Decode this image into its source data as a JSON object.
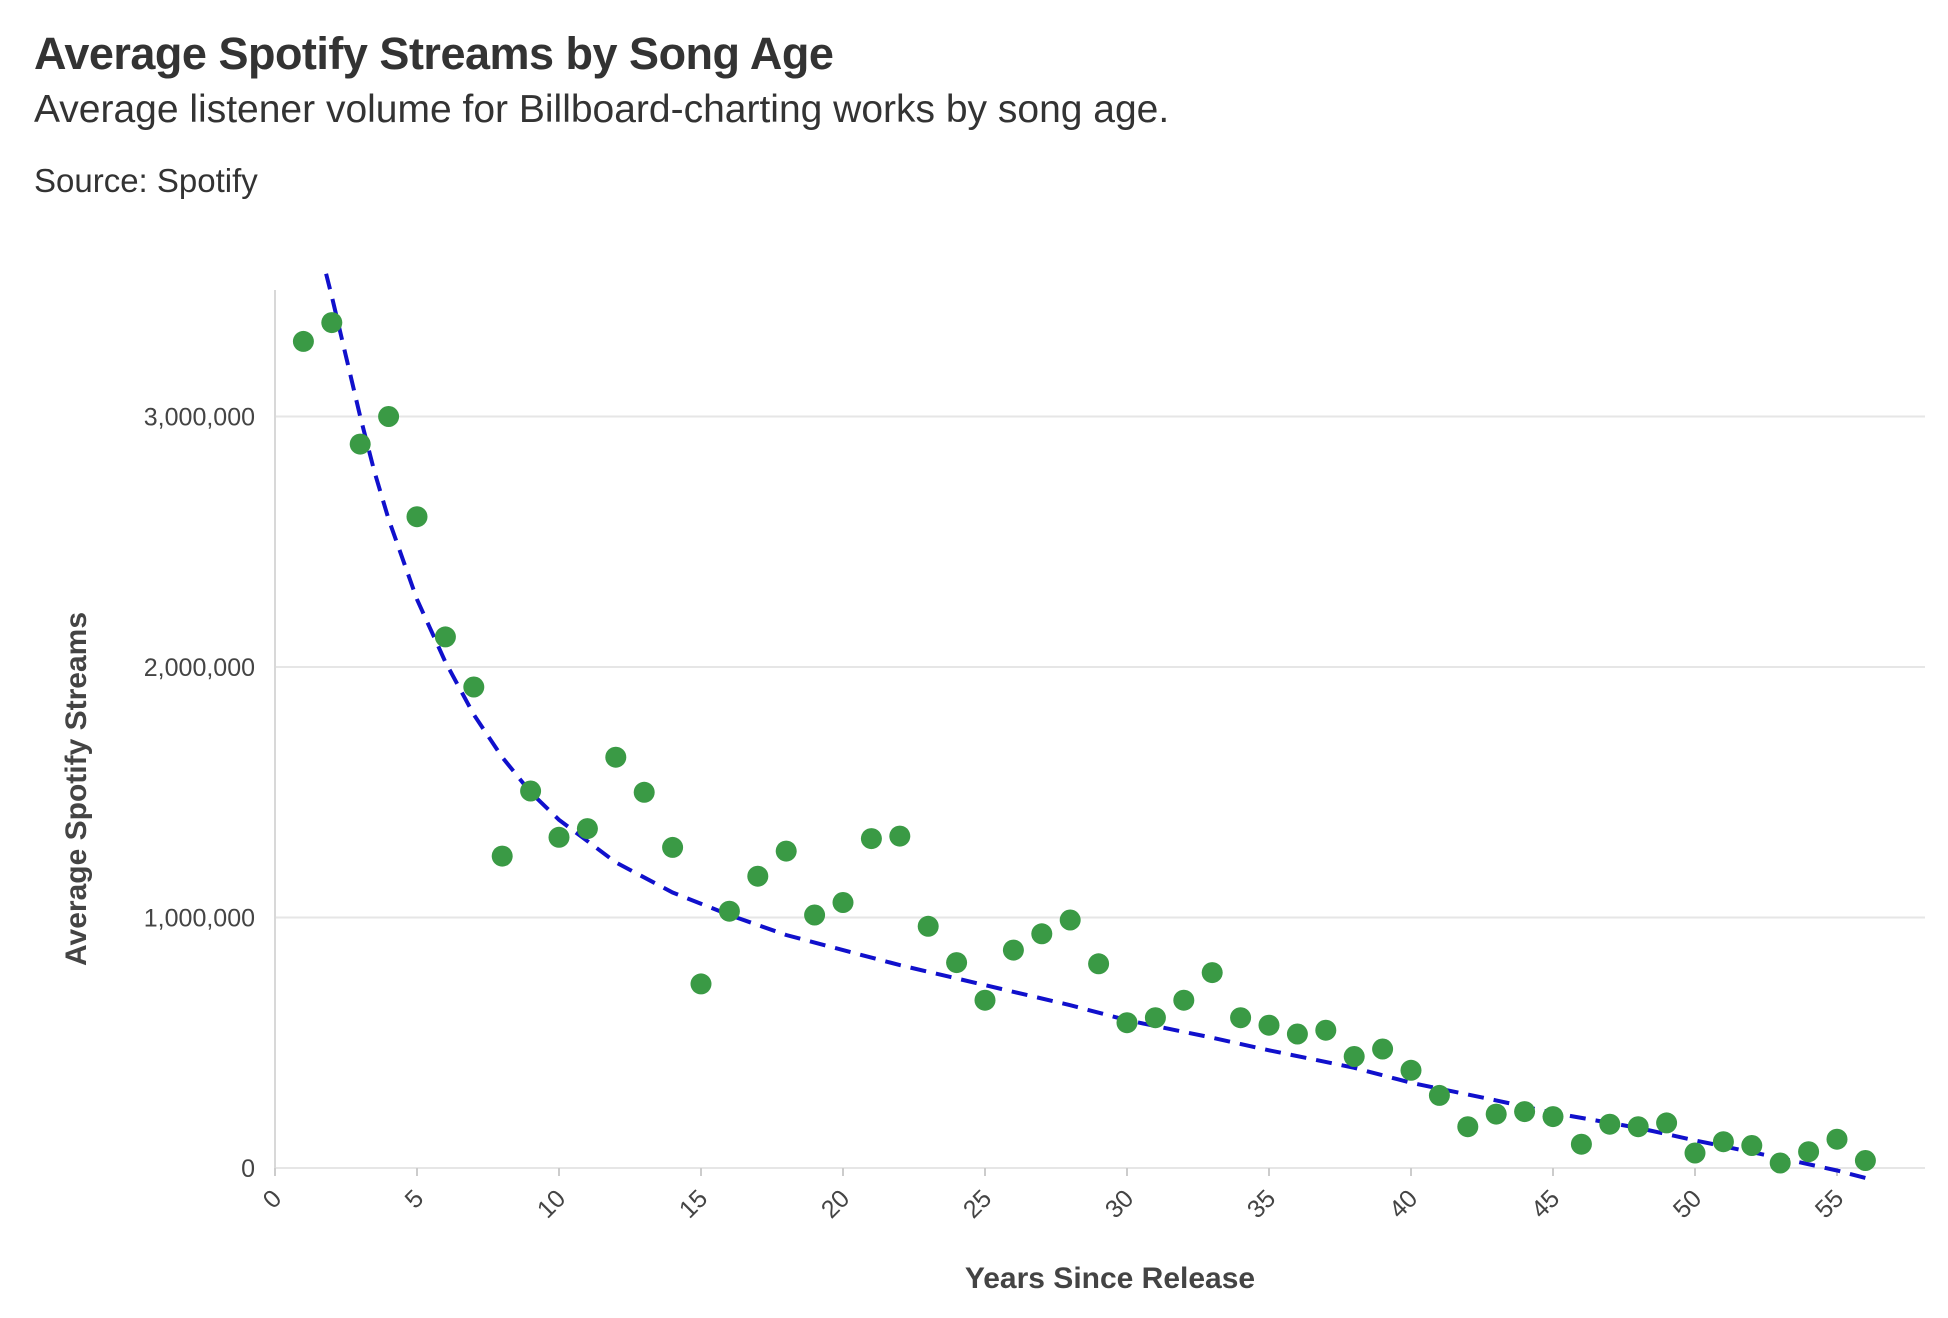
{
  "header": {
    "title": "Average Spotify Streams by Song Age",
    "subtitle": "Average listener volume for Billboard-charting works by song age.",
    "source": "Source: Spotify"
  },
  "colors": {
    "points": "#3a9a45",
    "trend": "#1010cc",
    "grid": "#e6e6e6",
    "text": "#333333"
  },
  "chart_data": {
    "type": "scatter",
    "title": "Average Spotify Streams by Song Age",
    "xlabel": "Years Since Release",
    "ylabel": "Average Spotify Streams",
    "xlim": [
      0,
      58
    ],
    "ylim": [
      0,
      3500000
    ],
    "x_ticks": [
      0,
      5,
      10,
      15,
      20,
      25,
      30,
      35,
      40,
      45,
      50,
      55
    ],
    "y_ticks": [
      0,
      1000000,
      2000000,
      3000000
    ],
    "y_tick_labels": [
      "0",
      "1,000,000",
      "2,000,000",
      "3,000,000"
    ],
    "grid": "horizontal",
    "legend": "none",
    "series": [
      {
        "x": [
          1,
          2,
          3,
          4,
          5,
          6,
          7,
          8,
          9,
          10,
          11,
          12,
          13,
          14,
          15,
          16,
          17,
          18,
          19,
          20,
          21,
          22,
          23,
          24,
          25,
          26,
          27,
          28,
          29,
          30,
          31,
          32,
          33,
          34,
          35,
          36,
          37,
          38,
          39,
          40,
          41,
          42,
          43,
          44,
          45,
          46,
          47,
          48,
          49,
          50,
          51,
          52,
          53,
          54,
          55,
          56
        ],
        "y": [
          3300000,
          3375000,
          2890000,
          3000000,
          2600000,
          2120000,
          1920000,
          1245000,
          1505000,
          1320000,
          1355000,
          1640000,
          1500000,
          1280000,
          735000,
          1025000,
          1165000,
          1265000,
          1010000,
          1060000,
          1315000,
          1325000,
          965000,
          820000,
          670000,
          870000,
          935000,
          990000,
          815000,
          580000,
          600000,
          670000,
          780000,
          600000,
          570000,
          535000,
          550000,
          445000,
          475000,
          390000,
          290000,
          165000,
          215000,
          225000,
          205000,
          95000,
          175000,
          165000,
          180000,
          60000,
          105000,
          90000,
          20000,
          65000,
          115000,
          30000
        ]
      }
    ],
    "trendline": {
      "style": "dashed",
      "x": [
        1.8,
        2,
        2.5,
        3,
        3.5,
        4,
        5,
        6,
        7,
        8,
        9,
        10,
        12,
        14,
        16,
        18,
        20,
        22,
        25,
        28,
        30,
        33,
        35,
        38,
        40,
        43,
        45,
        48,
        50,
        53,
        55,
        56
      ],
      "y": [
        3570000,
        3480000,
        3240000,
        3000000,
        2780000,
        2590000,
        2270000,
        2020000,
        1810000,
        1640000,
        1500000,
        1390000,
        1220000,
        1100000,
        1010000,
        930000,
        870000,
        810000,
        730000,
        650000,
        590000,
        520000,
        470000,
        400000,
        340000,
        270000,
        220000,
        160000,
        110000,
        40000,
        -10000,
        -40000
      ]
    }
  }
}
